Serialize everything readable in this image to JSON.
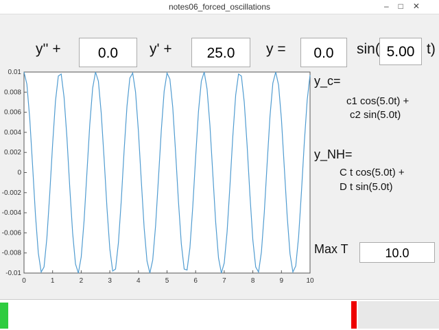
{
  "window_title": "notes06_forced_oscillations",
  "equation": {
    "term1": "y'' +",
    "input1": "0.0",
    "term2": "y' +",
    "input2": "25.0",
    "term3": "y =",
    "input3": "0.0",
    "term4": "sin(",
    "input4": "5.00",
    "term5": "t)"
  },
  "panel": {
    "yc_label": "y_c=",
    "yc_line1": "c1 cos(5.0t) +",
    "yc_line2": "c2 sin(5.0t)",
    "ynh_label": "y_NH=",
    "ynh_line1": "C t cos(5.0t) +",
    "ynh_line2": "D t sin(5.0t)",
    "maxt_label": "Max T",
    "maxt_input": "10.0"
  },
  "chart_data": {
    "type": "line",
    "color": "#4f9bd0",
    "x": [
      0,
      0.1,
      0.2,
      0.3,
      0.4,
      0.5,
      0.6,
      0.7,
      0.8,
      0.9,
      1,
      1.1,
      1.2,
      1.3,
      1.4,
      1.5,
      1.6,
      1.7,
      1.8,
      1.9,
      2,
      2.1,
      2.2,
      2.3,
      2.4,
      2.5,
      2.6,
      2.7,
      2.8,
      2.9,
      3,
      3.1,
      3.2,
      3.3,
      3.4,
      3.5,
      3.6,
      3.7,
      3.8,
      3.9,
      4,
      4.1,
      4.2,
      4.3,
      4.4,
      4.5,
      4.6,
      4.7,
      4.8,
      4.9,
      5,
      5.1,
      5.2,
      5.3,
      5.4,
      5.5,
      5.6,
      5.7,
      5.8,
      5.9,
      6,
      6.1,
      6.2,
      6.3,
      6.4,
      6.5,
      6.6,
      6.7,
      6.8,
      6.9,
      7,
      7.1,
      7.2,
      7.3,
      7.4,
      7.5,
      7.6,
      7.7,
      7.8,
      7.9,
      8,
      8.1,
      8.2,
      8.3,
      8.4,
      8.5,
      8.6,
      8.7,
      8.8,
      8.9,
      9,
      9.1,
      9.2,
      9.3,
      9.4,
      9.5,
      9.6,
      9.7,
      9.8,
      9.9,
      10
    ],
    "values": [
      0.01,
      0.0088,
      0.0054,
      0.0007,
      -0.0042,
      -0.008,
      -0.0099,
      -0.0094,
      -0.0065,
      -0.0021,
      0.0028,
      0.0071,
      0.0096,
      0.0098,
      0.0075,
      0.0035,
      -0.0015,
      -0.006,
      -0.0091,
      -0.01,
      -0.0084,
      -0.0048,
      0,
      0.0048,
      0.0084,
      0.01,
      0.0091,
      0.0059,
      0.0014,
      -0.0035,
      -0.0076,
      -0.0098,
      -0.0096,
      -0.007,
      -0.0028,
      0.0022,
      0.0066,
      0.0094,
      0.0099,
      0.008,
      0.0041,
      -0.0008,
      -0.0055,
      -0.0088,
      -0.01,
      -0.0087,
      -0.0053,
      -0.0006,
      0.0042,
      0.0081,
      0.0099,
      0.0093,
      0.0065,
      0.002,
      -0.0029,
      -0.0071,
      -0.0096,
      -0.0097,
      -0.0075,
      -0.0034,
      0.0015,
      0.0061,
      0.0091,
      0.01,
      0.0083,
      0.0047,
      -0.0001,
      -0.0049,
      -0.0085,
      -0.01,
      -0.009,
      -0.0059,
      -0.0013,
      0.0036,
      0.0077,
      0.0098,
      0.0096,
      0.007,
      0.0027,
      -0.0023,
      -0.0067,
      -0.0094,
      -0.0099,
      -0.0079,
      -0.004,
      0.0009,
      0.0056,
      0.0089,
      0.01,
      0.0087,
      0.0053,
      0.0005,
      -0.0043,
      -0.0081,
      -0.0099,
      -0.0093,
      -0.0064,
      -0.0019,
      0.003,
      0.0072,
      0.0097
    ],
    "xlim": [
      0,
      10
    ],
    "xticks": [
      0,
      1,
      2,
      3,
      4,
      5,
      6,
      7,
      8,
      9,
      10
    ],
    "ylim": [
      -0.01,
      0.01
    ],
    "yticks": [
      -0.01,
      -0.008,
      -0.006,
      -0.004,
      -0.002,
      0,
      0.002,
      0.004,
      0.006,
      0.008,
      0.01
    ]
  }
}
